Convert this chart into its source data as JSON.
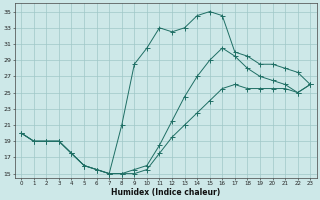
{
  "xlabel": "Humidex (Indice chaleur)",
  "xlim": [
    -0.5,
    23.5
  ],
  "ylim": [
    14.5,
    36
  ],
  "xticks": [
    0,
    1,
    2,
    3,
    4,
    5,
    6,
    7,
    8,
    9,
    10,
    11,
    12,
    13,
    14,
    15,
    16,
    17,
    18,
    19,
    20,
    21,
    22,
    23
  ],
  "yticks": [
    15,
    17,
    19,
    21,
    23,
    25,
    27,
    29,
    31,
    33,
    35
  ],
  "bg_color": "#cde8e8",
  "grid_color": "#a0c8c8",
  "line_color": "#1e6e64",
  "curve1_x": [
    0,
    1,
    2,
    3,
    4,
    5,
    6,
    7,
    8,
    9,
    10,
    11,
    12,
    13,
    14,
    15,
    16,
    17,
    18,
    19,
    20,
    21,
    22,
    23
  ],
  "curve1_y": [
    20.0,
    19.0,
    19.0,
    19.0,
    17.5,
    16.0,
    15.5,
    15.0,
    15.0,
    15.0,
    15.5,
    17.5,
    19.5,
    21.0,
    22.5,
    24.0,
    25.5,
    26.0,
    25.5,
    25.5,
    25.5,
    25.5,
    25.0,
    26.0
  ],
  "curve2_x": [
    0,
    1,
    2,
    3,
    4,
    5,
    6,
    7,
    8,
    9,
    10,
    11,
    12,
    13,
    14,
    15,
    16,
    17,
    18,
    19,
    20,
    21,
    22,
    23
  ],
  "curve2_y": [
    20.0,
    19.0,
    19.0,
    19.0,
    17.5,
    16.0,
    15.5,
    15.0,
    21.0,
    28.5,
    30.5,
    33.0,
    32.5,
    33.0,
    34.5,
    35.0,
    34.5,
    30.0,
    29.5,
    28.5,
    28.5,
    28.0,
    27.5,
    26.0
  ],
  "curve3_x": [
    0,
    1,
    2,
    3,
    4,
    5,
    6,
    7,
    8,
    9,
    10,
    11,
    12,
    13,
    14,
    15,
    16,
    17,
    18,
    19,
    20,
    21,
    22,
    23
  ],
  "curve3_y": [
    20.0,
    19.0,
    19.0,
    19.0,
    17.5,
    16.0,
    15.5,
    15.0,
    15.0,
    15.5,
    16.0,
    18.5,
    21.5,
    24.5,
    27.0,
    29.0,
    30.5,
    29.5,
    28.0,
    27.0,
    26.5,
    26.0,
    25.0,
    26.0
  ]
}
